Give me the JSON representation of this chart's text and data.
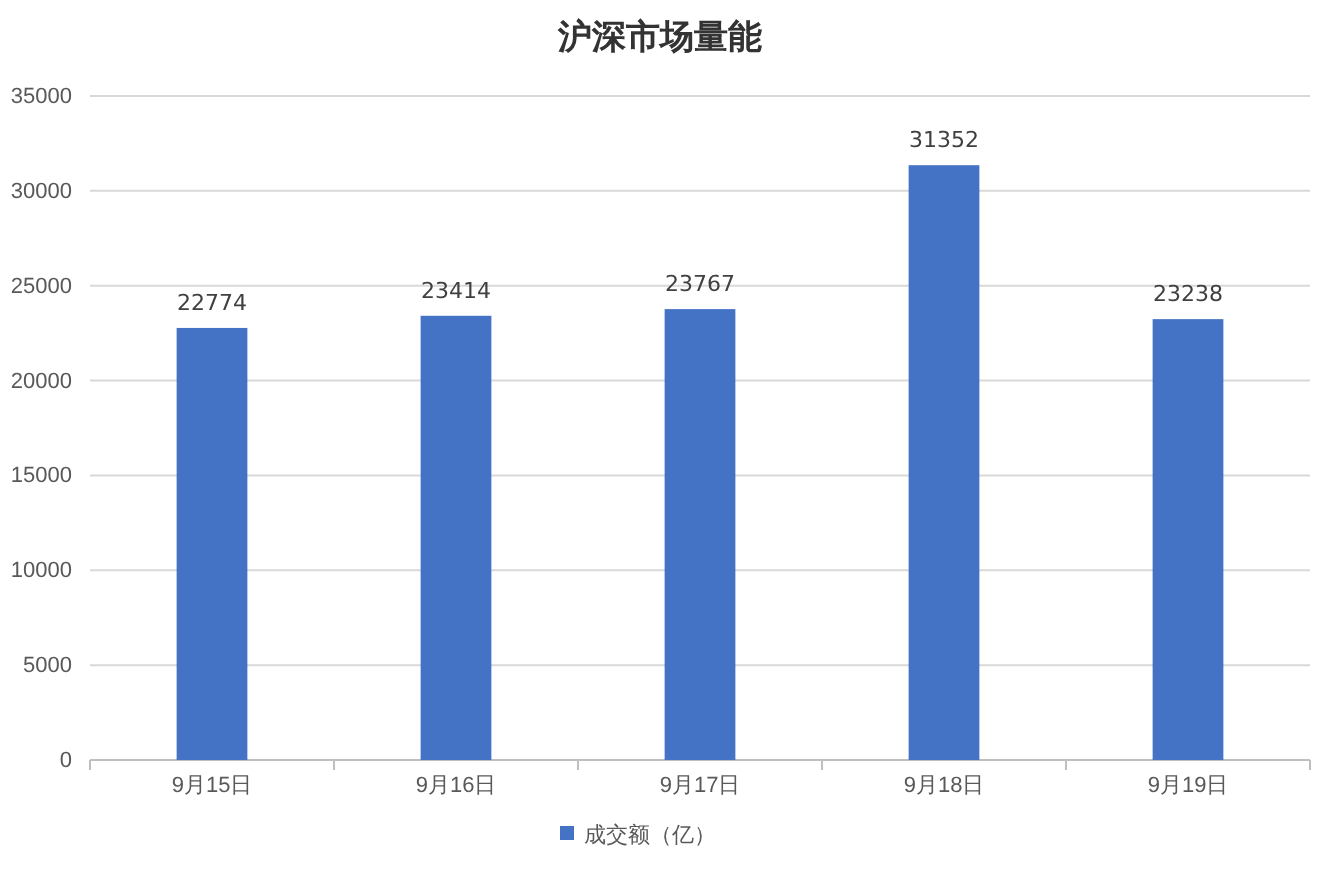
{
  "chart_data": {
    "type": "bar",
    "title": "沪深市场量能",
    "categories": [
      "9月15日",
      "9月16日",
      "9月17日",
      "9月18日",
      "9月19日"
    ],
    "series": [
      {
        "name": "成交额（亿）",
        "color": "#4472c4",
        "values": [
          22774,
          23414,
          23767,
          31352,
          23238
        ]
      }
    ],
    "ylim": [
      0,
      35000
    ],
    "yticks": [
      0,
      5000,
      10000,
      15000,
      20000,
      25000,
      30000,
      35000
    ],
    "grid": "y",
    "legend": "bottom",
    "data_labels": true
  }
}
